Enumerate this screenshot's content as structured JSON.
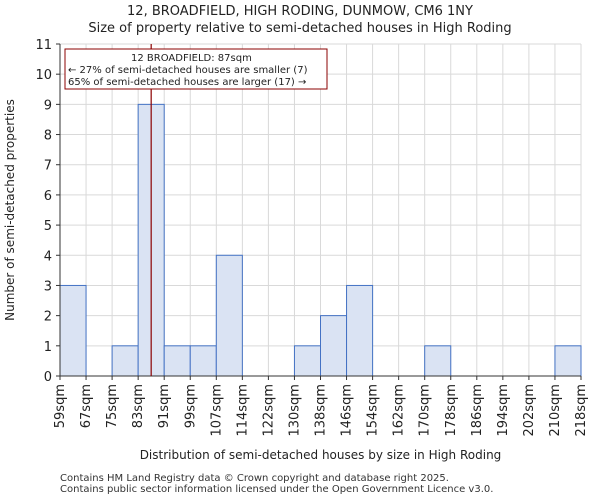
{
  "title": "12, BROADFIELD, HIGH RODING, DUNMOW, CM6 1NY",
  "subtitle": "Size of property relative to semi-detached houses in High Roding",
  "footer": {
    "line1": "Contains HM Land Registry data © Crown copyright and database right 2025.",
    "line2": "Contains public sector information licensed under the Open Government Licence v3.0."
  },
  "chart_data": {
    "type": "bar",
    "title": "12, BROADFIELD, HIGH RODING, DUNMOW, CM6 1NY",
    "subtitle": "Size of property relative to semi-detached houses in High Roding",
    "xlabel": "Distribution of semi-detached houses by size in High Roding",
    "ylabel": "Number of semi-detached properties",
    "bin_edges": [
      "59sqm",
      "67sqm",
      "75sqm",
      "83sqm",
      "91sqm",
      "99sqm",
      "107sqm",
      "114sqm",
      "122sqm",
      "130sqm",
      "138sqm",
      "146sqm",
      "154sqm",
      "162sqm",
      "170sqm",
      "178sqm",
      "186sqm",
      "194sqm",
      "202sqm",
      "210sqm",
      "218sqm"
    ],
    "values": [
      3,
      0,
      1,
      9,
      1,
      1,
      4,
      0,
      0,
      1,
      2,
      3,
      0,
      0,
      1,
      0,
      0,
      0,
      0,
      1
    ],
    "ylim": [
      0,
      11
    ],
    "yticks": [
      0,
      1,
      2,
      3,
      4,
      5,
      6,
      7,
      8,
      9,
      10,
      11
    ],
    "grid": true,
    "bar_color": "#dae3f3",
    "bar_edge_color": "#4472c4",
    "marker": {
      "value_sqm": 87,
      "color": "#8b0000",
      "annotation": {
        "line1": "12 BROADFIELD: 87sqm",
        "line2": "← 27% of semi-detached houses are smaller (7)",
        "line3": "65% of semi-detached houses are larger (17) →"
      }
    }
  }
}
